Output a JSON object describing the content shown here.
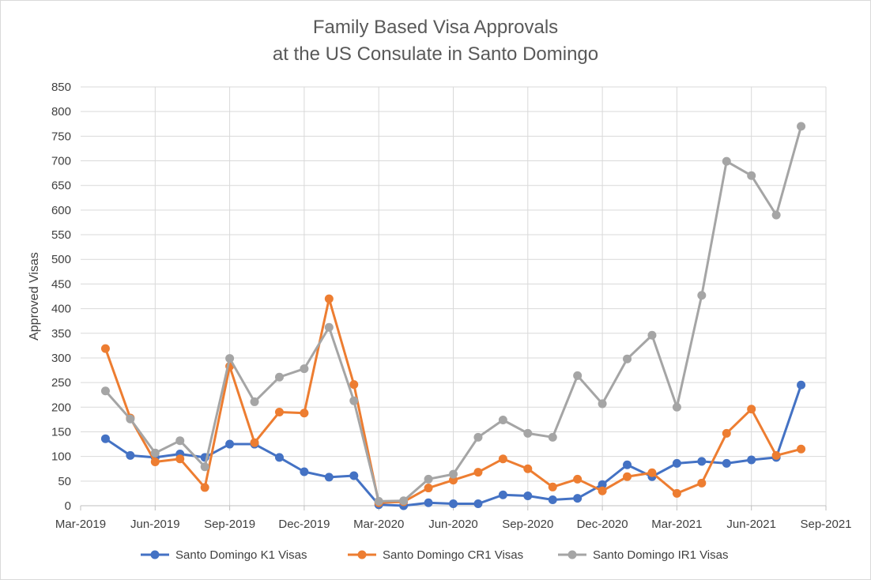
{
  "chart_data": {
    "type": "line",
    "title": [
      "Family Based Visa Approvals",
      "at the US Consulate in Santo Domingo"
    ],
    "ylabel": "Approved Visas",
    "xlabel": "",
    "ylim": [
      0,
      850
    ],
    "y_ticks": [
      0,
      50,
      100,
      150,
      200,
      250,
      300,
      350,
      400,
      450,
      500,
      550,
      600,
      650,
      700,
      750,
      800,
      850
    ],
    "x_range": [
      "2019-03",
      "2021-09"
    ],
    "x_ticks": [
      "Mar-2019",
      "Jun-2019",
      "Sep-2019",
      "Dec-2019",
      "Mar-2020",
      "Jun-2020",
      "Sep-2020",
      "Dec-2020",
      "Mar-2021",
      "Jun-2021",
      "Sep-2021"
    ],
    "grid": true,
    "legend_position": "bottom",
    "x": [
      "2019-04",
      "2019-05",
      "2019-06",
      "2019-07",
      "2019-08",
      "2019-09",
      "2019-10",
      "2019-11",
      "2019-12",
      "2020-01",
      "2020-02",
      "2020-03",
      "2020-04",
      "2020-05",
      "2020-06",
      "2020-07",
      "2020-08",
      "2020-09",
      "2020-10",
      "2020-11",
      "2020-12",
      "2021-01",
      "2021-02",
      "2021-03",
      "2021-04",
      "2021-05",
      "2021-06",
      "2021-07",
      "2021-08",
      "2021-09"
    ],
    "series": [
      {
        "name": "Santo Domingo K1 Visas",
        "color": "#4472C4",
        "values": [
          136,
          102,
          98,
          105,
          98,
          125,
          125,
          98,
          69,
          58,
          61,
          2,
          0,
          6,
          4,
          4,
          22,
          20,
          12,
          15,
          43,
          83,
          59,
          86,
          90,
          86,
          93,
          98,
          245,
          null
        ]
      },
      {
        "name": "Santo Domingo CR1 Visas",
        "color": "#ED7D31",
        "values": [
          319,
          178,
          89,
          95,
          37,
          283,
          128,
          190,
          188,
          420,
          246,
          6,
          8,
          36,
          52,
          68,
          95,
          75,
          38,
          54,
          30,
          59,
          67,
          25,
          46,
          147,
          196,
          102,
          115,
          null
        ]
      },
      {
        "name": "Santo Domingo IR1 Visas",
        "color": "#A5A5A5",
        "values": [
          233,
          176,
          107,
          132,
          79,
          299,
          211,
          261,
          278,
          362,
          213,
          9,
          10,
          54,
          64,
          139,
          174,
          147,
          139,
          264,
          207,
          298,
          346,
          200,
          427,
          699,
          670,
          590,
          770,
          null
        ]
      }
    ]
  }
}
